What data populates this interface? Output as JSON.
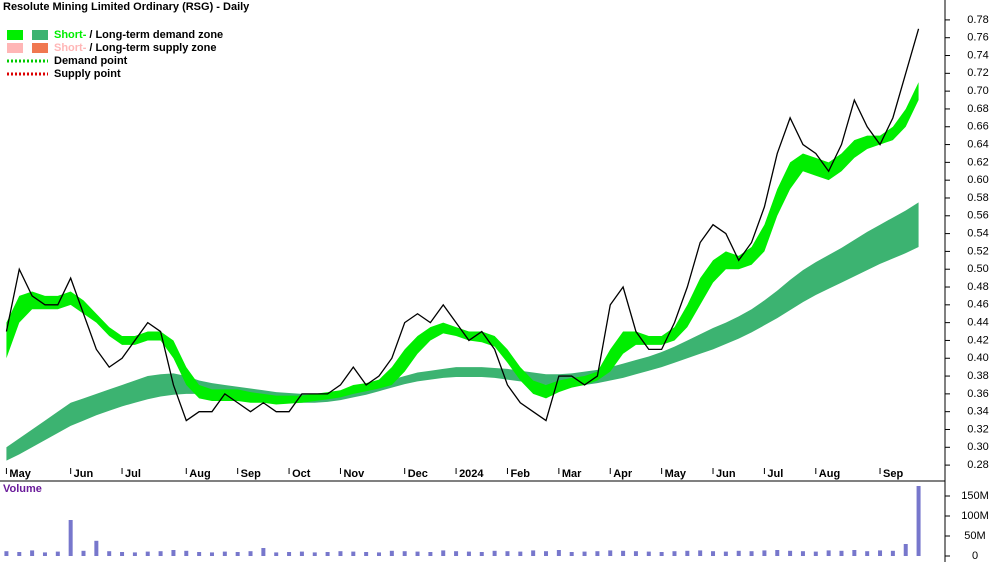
{
  "chart_data": {
    "type": "stock",
    "title": "Resolute Mining Limited Ordinary (RSG) - Daily",
    "legend": [
      {
        "short": "Short-",
        "long": "Long-term demand zone",
        "short_color": "#00ee00",
        "long_color": "#3cb371"
      },
      {
        "short": "Short-",
        "long": "Long-term supply zone",
        "short_color": "#ffb6b6",
        "long_color": "#f07850"
      },
      {
        "label": "Demand point",
        "color": "#00cc00"
      },
      {
        "label": "Supply point",
        "color": "#dd0000"
      }
    ],
    "categories": [
      "May",
      null,
      null,
      null,
      null,
      "Jun",
      null,
      null,
      null,
      "Jul",
      null,
      null,
      null,
      null,
      "Aug",
      null,
      null,
      null,
      "Sep",
      null,
      null,
      null,
      "Oct",
      null,
      null,
      null,
      "Nov",
      null,
      null,
      null,
      null,
      "Dec",
      null,
      null,
      null,
      "2024",
      null,
      null,
      null,
      "Feb",
      null,
      null,
      null,
      "Mar",
      null,
      null,
      null,
      "Apr",
      null,
      null,
      null,
      "May",
      null,
      null,
      null,
      "Jun",
      null,
      null,
      null,
      "Jul",
      null,
      null,
      null,
      "Aug",
      null,
      null,
      null,
      null,
      "Sep",
      null,
      null,
      null
    ],
    "price": [
      0.43,
      0.5,
      0.47,
      0.46,
      0.46,
      0.49,
      0.45,
      0.41,
      0.39,
      0.4,
      0.42,
      0.44,
      0.43,
      0.37,
      0.33,
      0.34,
      0.34,
      0.36,
      0.35,
      0.34,
      0.35,
      0.34,
      0.34,
      0.36,
      0.36,
      0.36,
      0.37,
      0.39,
      0.37,
      0.38,
      0.4,
      0.44,
      0.45,
      0.44,
      0.46,
      0.44,
      0.42,
      0.43,
      0.41,
      0.37,
      0.35,
      0.34,
      0.33,
      0.38,
      0.38,
      0.37,
      0.38,
      0.46,
      0.48,
      0.43,
      0.41,
      0.41,
      0.44,
      0.48,
      0.53,
      0.55,
      0.54,
      0.51,
      0.53,
      0.57,
      0.63,
      0.67,
      0.64,
      0.63,
      0.61,
      0.64,
      0.69,
      0.66,
      0.64,
      0.67,
      0.72,
      0.77
    ],
    "price_color": "#000000",
    "short_zone": {
      "color": "#00ee00",
      "upper": [
        0.44,
        0.47,
        0.475,
        0.47,
        0.47,
        0.475,
        0.465,
        0.45,
        0.435,
        0.425,
        0.425,
        0.43,
        0.43,
        0.42,
        0.39,
        0.37,
        0.365,
        0.365,
        0.365,
        0.362,
        0.36,
        0.358,
        0.358,
        0.358,
        0.36,
        0.362,
        0.364,
        0.37,
        0.372,
        0.376,
        0.39,
        0.41,
        0.425,
        0.435,
        0.44,
        0.435,
        0.43,
        0.43,
        0.425,
        0.41,
        0.39,
        0.375,
        0.37,
        0.375,
        0.378,
        0.38,
        0.385,
        0.41,
        0.43,
        0.43,
        0.425,
        0.425,
        0.435,
        0.46,
        0.49,
        0.51,
        0.52,
        0.515,
        0.525,
        0.55,
        0.59,
        0.62,
        0.63,
        0.625,
        0.62,
        0.63,
        0.645,
        0.65,
        0.65,
        0.66,
        0.68,
        0.71
      ],
      "lower": [
        0.4,
        0.44,
        0.455,
        0.455,
        0.455,
        0.46,
        0.45,
        0.44,
        0.425,
        0.415,
        0.415,
        0.42,
        0.42,
        0.4,
        0.37,
        0.355,
        0.352,
        0.352,
        0.352,
        0.35,
        0.35,
        0.348,
        0.349,
        0.35,
        0.352,
        0.354,
        0.356,
        0.36,
        0.363,
        0.366,
        0.37,
        0.385,
        0.405,
        0.42,
        0.428,
        0.425,
        0.42,
        0.418,
        0.413,
        0.395,
        0.375,
        0.36,
        0.355,
        0.362,
        0.367,
        0.37,
        0.375,
        0.385,
        0.405,
        0.415,
        0.415,
        0.415,
        0.42,
        0.435,
        0.46,
        0.485,
        0.5,
        0.5,
        0.505,
        0.52,
        0.56,
        0.59,
        0.61,
        0.605,
        0.6,
        0.61,
        0.625,
        0.635,
        0.64,
        0.645,
        0.66,
        0.69
      ]
    },
    "long_zone": {
      "color": "#3cb371",
      "upper": [
        0.3,
        0.31,
        0.32,
        0.33,
        0.34,
        0.35,
        0.355,
        0.36,
        0.365,
        0.37,
        0.375,
        0.38,
        0.382,
        0.383,
        0.38,
        0.375,
        0.372,
        0.37,
        0.368,
        0.366,
        0.364,
        0.362,
        0.361,
        0.36,
        0.36,
        0.36,
        0.362,
        0.365,
        0.368,
        0.372,
        0.376,
        0.38,
        0.384,
        0.386,
        0.388,
        0.39,
        0.39,
        0.39,
        0.389,
        0.388,
        0.386,
        0.384,
        0.382,
        0.382,
        0.383,
        0.385,
        0.387,
        0.39,
        0.394,
        0.398,
        0.402,
        0.407,
        0.413,
        0.42,
        0.427,
        0.434,
        0.44,
        0.447,
        0.455,
        0.465,
        0.476,
        0.488,
        0.499,
        0.508,
        0.516,
        0.524,
        0.533,
        0.542,
        0.55,
        0.558,
        0.566,
        0.575
      ],
      "lower": [
        0.285,
        0.292,
        0.3,
        0.308,
        0.316,
        0.324,
        0.33,
        0.336,
        0.341,
        0.346,
        0.35,
        0.354,
        0.357,
        0.359,
        0.36,
        0.36,
        0.358,
        0.356,
        0.354,
        0.353,
        0.352,
        0.351,
        0.35,
        0.35,
        0.35,
        0.351,
        0.353,
        0.356,
        0.359,
        0.363,
        0.367,
        0.371,
        0.374,
        0.376,
        0.378,
        0.379,
        0.379,
        0.379,
        0.378,
        0.376,
        0.374,
        0.372,
        0.37,
        0.369,
        0.369,
        0.37,
        0.372,
        0.375,
        0.378,
        0.382,
        0.386,
        0.39,
        0.395,
        0.4,
        0.405,
        0.41,
        0.416,
        0.422,
        0.429,
        0.437,
        0.445,
        0.454,
        0.463,
        0.471,
        0.478,
        0.485,
        0.492,
        0.499,
        0.506,
        0.512,
        0.518,
        0.525
      ]
    },
    "ylim": [
      0.27,
      0.79
    ],
    "yticks": [
      0.28,
      {
        "value": 0.3,
        "label": "0.30"
      },
      0.32,
      0.34,
      0.36,
      0.38,
      {
        "value": 0.4,
        "label": "0.40"
      },
      0.42,
      0.44,
      0.46,
      0.48,
      {
        "value": 0.5,
        "label": "0.50"
      },
      0.52,
      0.54,
      0.56,
      0.58,
      {
        "value": 0.6,
        "label": "0.60"
      },
      0.62,
      0.64,
      0.66,
      0.68,
      {
        "value": 0.7,
        "label": "0.70"
      },
      0.72,
      0.74,
      0.76,
      0.78
    ],
    "volume_label": "Volume",
    "volume_color": "#7777cc",
    "volume": [
      12,
      10,
      14,
      9,
      11,
      90,
      13,
      38,
      12,
      10,
      9,
      11,
      12,
      15,
      13,
      10,
      9,
      11,
      10,
      12,
      20,
      9,
      10,
      11,
      9,
      10,
      12,
      11,
      10,
      9,
      13,
      12,
      11,
      10,
      14,
      12,
      11,
      10,
      13,
      12,
      11,
      14,
      12,
      15,
      10,
      11,
      12,
      14,
      13,
      12,
      11,
      10,
      12,
      13,
      14,
      12,
      11,
      13,
      12,
      14,
      15,
      13,
      12,
      11,
      14,
      13,
      15,
      12,
      14,
      13,
      30,
      175
    ],
    "vlim": [
      0,
      185
    ],
    "vticks": [
      0,
      {
        "value": 50,
        "label": "50M"
      },
      {
        "value": 100,
        "label": "100M"
      },
      {
        "value": 150,
        "label": "150M"
      }
    ]
  }
}
